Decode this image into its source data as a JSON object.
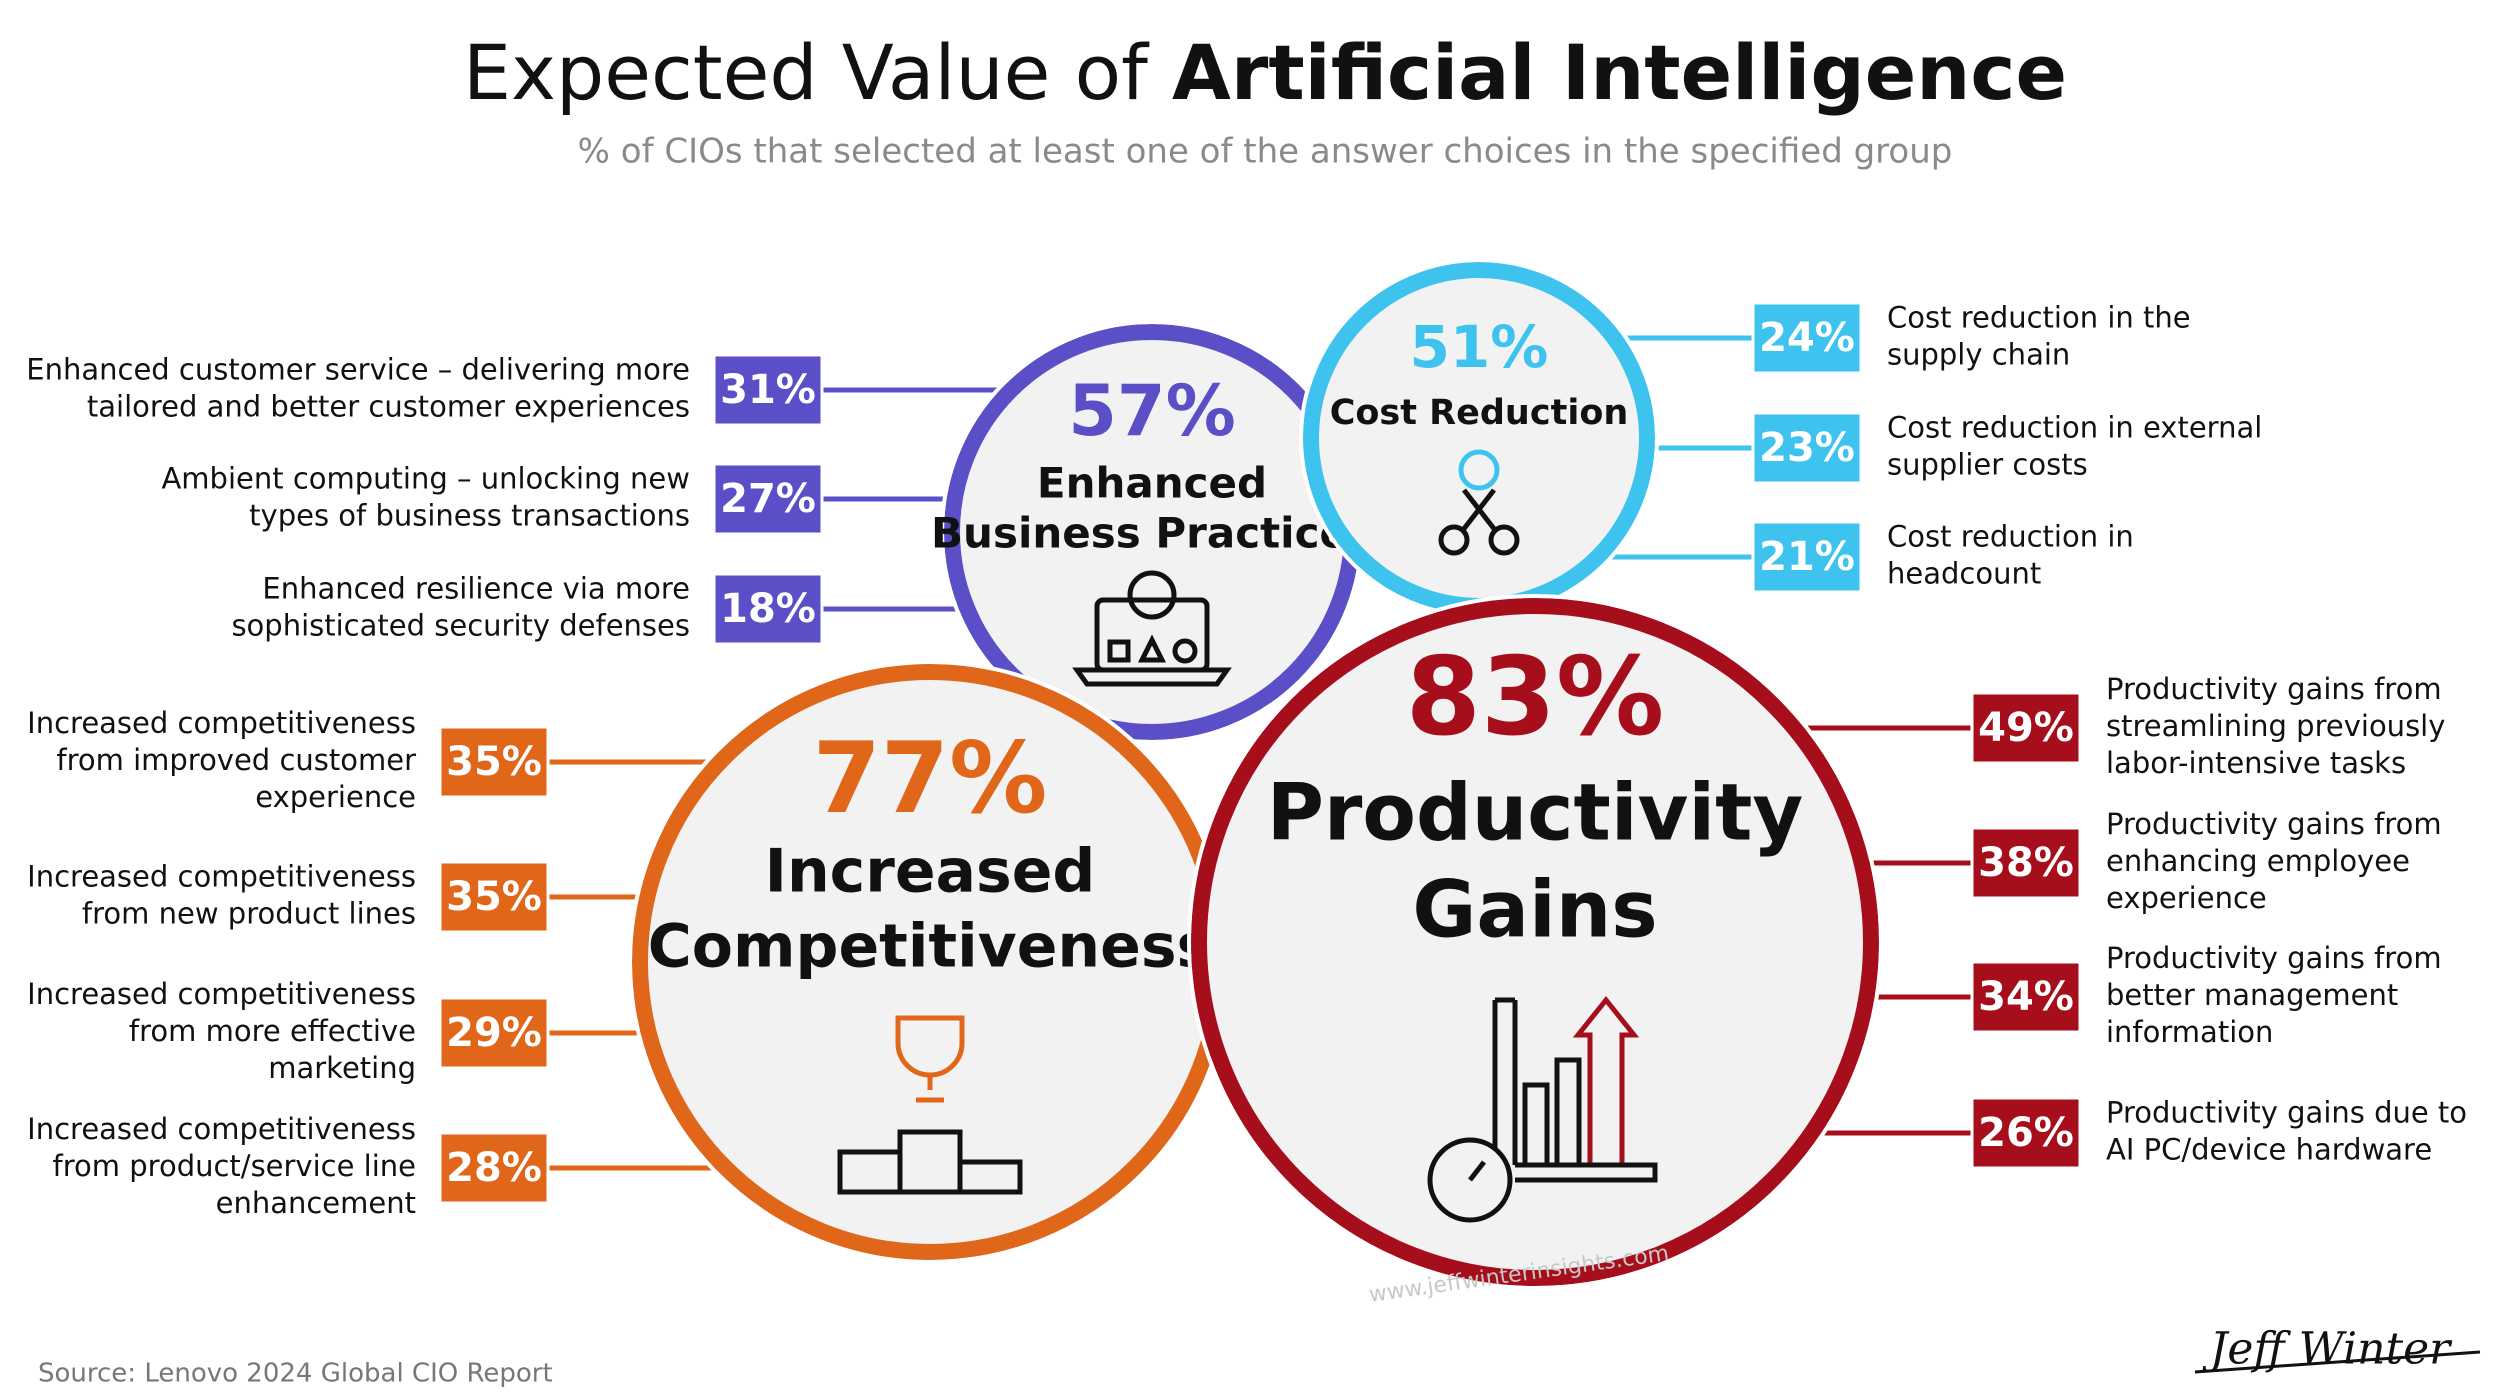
{
  "title": {
    "regular": "Expected Value of ",
    "bold": "Artificial Intelligence"
  },
  "subtitle": "% of CIOs that selected at least one of the answer choices in the specified group",
  "groups": [
    {
      "name": [
        "Enhanced",
        "Business Practices"
      ],
      "value": "57%",
      "color": "#5a4fc6",
      "items": [
        {
          "value": "31%",
          "label": [
            "Enhanced customer service – delivering more",
            "tailored and better customer experiences"
          ]
        },
        {
          "value": "27%",
          "label": [
            "Ambient computing – unlocking new",
            "types of business transactions"
          ]
        },
        {
          "value": "18%",
          "label": [
            "Enhanced resilience via more",
            "sophisticated security defenses"
          ]
        }
      ]
    },
    {
      "name": [
        "Cost Reduction"
      ],
      "value": "51%",
      "color": "#3ec3ef",
      "items": [
        {
          "value": "24%",
          "label": [
            "Cost reduction in the",
            "supply chain"
          ]
        },
        {
          "value": "23%",
          "label": [
            "Cost reduction in external",
            "supplier costs"
          ]
        },
        {
          "value": "21%",
          "label": [
            "Cost reduction in",
            "headcount"
          ]
        }
      ]
    },
    {
      "name": [
        "Increased",
        "Competitiveness"
      ],
      "value": "77%",
      "color": "#e0661a",
      "items": [
        {
          "value": "35%",
          "label": [
            "Increased competitiveness",
            "from improved customer",
            "experience"
          ]
        },
        {
          "value": "35%",
          "label": [
            "Increased competitiveness",
            "from new product lines"
          ]
        },
        {
          "value": "29%",
          "label": [
            "Increased competitiveness",
            "from more effective",
            "marketing"
          ]
        },
        {
          "value": "28%",
          "label": [
            "Increased competitiveness",
            "from product/service line",
            "enhancement"
          ]
        }
      ]
    },
    {
      "name": [
        "Productivity",
        "Gains"
      ],
      "value": "83%",
      "color": "#a50e1a",
      "items": [
        {
          "value": "49%",
          "label": [
            "Productivity gains from",
            "streamlining previously",
            "labor-intensive tasks"
          ]
        },
        {
          "value": "38%",
          "label": [
            "Productivity gains from",
            "enhancing employee",
            "experience"
          ]
        },
        {
          "value": "34%",
          "label": [
            "Productivity gains from",
            "better management",
            "information"
          ]
        },
        {
          "value": "26%",
          "label": [
            "Productivity gains due to",
            "AI PC/device hardware"
          ]
        }
      ]
    }
  ],
  "source": "Source: Lenovo 2024 Global CIO Report",
  "watermark": "www.jeffwinterinsights.com",
  "signature": "Jeff Winter"
}
